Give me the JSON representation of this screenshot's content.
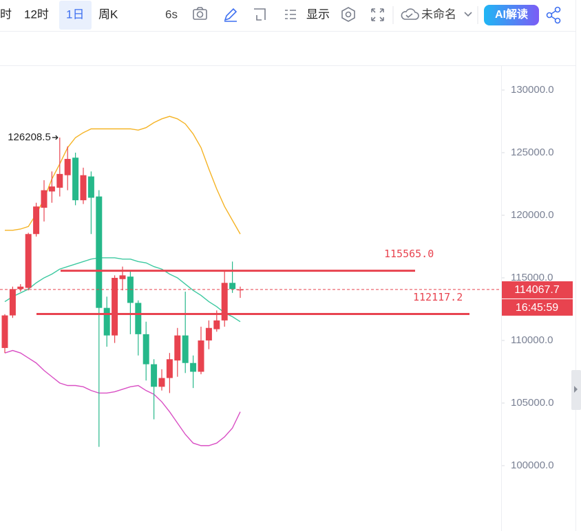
{
  "toolbar": [
    "时",
    "12时",
    "1日",
    "周K",
    "6s",
    "显示",
    "未命名",
    "AI解读"
  ],
  "chart_data": {
    "type": "candlestick",
    "up_color": "#e8434f",
    "down_color": "#26b88a",
    "open": [
      109400,
      112000,
      114100,
      114200,
      118500,
      120600,
      121900,
      122200,
      123200,
      124600,
      121200,
      123100,
      121500,
      112600,
      110400,
      114900,
      115100,
      113000,
      110500,
      108100,
      106300,
      107000,
      108400,
      110400,
      108200,
      107500,
      110000,
      110900,
      111600,
      114600,
      114050
    ],
    "high": [
      112100,
      114300,
      114500,
      118600,
      121000,
      122800,
      123500,
      126208.5,
      125500,
      125000,
      123800,
      123500,
      122000,
      113500,
      115200,
      115900,
      115500,
      113200,
      111500,
      108500,
      107700,
      109000,
      111000,
      113900,
      108800,
      111100,
      111600,
      112400,
      115600,
      116300,
      114300
    ],
    "low": [
      109000,
      111800,
      113900,
      114000,
      118300,
      119500,
      121000,
      121500,
      122000,
      120800,
      120900,
      118500,
      101500,
      109500,
      109800,
      114000,
      110500,
      108800,
      106800,
      103700,
      106000,
      105800,
      107100,
      107400,
      106200,
      107300,
      109300,
      110700,
      111100,
      113800,
      113400
    ],
    "close": [
      112000,
      114100,
      114300,
      118500,
      120700,
      122000,
      122300,
      123300,
      124500,
      121200,
      123200,
      121400,
      112600,
      110400,
      115000,
      115200,
      113000,
      110500,
      108100,
      106300,
      107000,
      108500,
      110400,
      108200,
      107500,
      110000,
      111000,
      111600,
      114600,
      114100,
      114067.7
    ],
    "series": [
      {
        "color": "#f5b324",
        "values": [
          118800,
          118800,
          118900,
          119100,
          120100,
          121300,
          122900,
          124100,
          125400,
          126200,
          126600,
          126900,
          126900,
          126900,
          126900,
          126900,
          126900,
          126800,
          127000,
          127400,
          127700,
          127900,
          127700,
          127300,
          126500,
          125400,
          123700,
          122100,
          120700,
          119600,
          118500
        ]
      },
      {
        "color": "#3cc9a0",
        "values": [
          113100,
          113500,
          113800,
          114100,
          114600,
          115000,
          115300,
          115700,
          115900,
          116100,
          116300,
          116500,
          116600,
          116600,
          116600,
          116500,
          116500,
          116300,
          116200,
          115900,
          115700,
          115300,
          115000,
          114500,
          114000,
          113600,
          113100,
          112700,
          112200,
          111900,
          111500
        ]
      },
      {
        "color": "#d94fc4",
        "values": [
          109000,
          109200,
          109000,
          108600,
          108200,
          107600,
          107100,
          106600,
          106400,
          106400,
          106300,
          106000,
          105800,
          105800,
          105900,
          106100,
          106300,
          106400,
          106000,
          105700,
          105100,
          104300,
          103400,
          102500,
          101800,
          101600,
          101600,
          101800,
          102300,
          103000,
          104300
        ]
      }
    ],
    "levels": [
      {
        "value": 115565,
        "label": "115565.0",
        "color": "#e8434f"
      },
      {
        "value": 112117.2,
        "label": "112117.2",
        "color": "#e8434f"
      }
    ],
    "current": {
      "price": 114067.7,
      "time": "16:45:59"
    },
    "ylim": [
      94780,
      131920
    ],
    "yticks": [
      {
        "value": 100000,
        "label": "100000.0"
      },
      {
        "value": 105000,
        "label": "105000.0"
      },
      {
        "value": 110000,
        "label": "110000.0"
      },
      {
        "value": 115000,
        "label": "115000.0"
      },
      {
        "value": 120000,
        "label": "120000.0"
      },
      {
        "value": 125000,
        "label": "125000.0"
      },
      {
        "value": 130000,
        "label": "130000.0"
      }
    ]
  }
}
